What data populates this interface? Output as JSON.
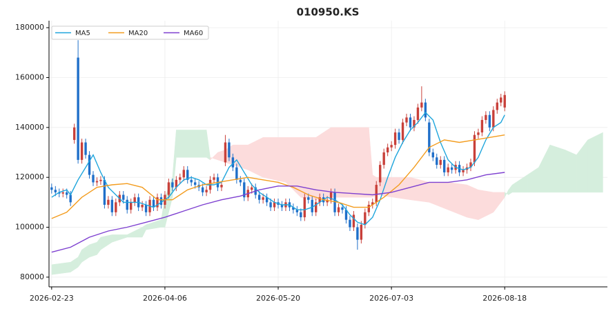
{
  "chart_data": {
    "type": "candlestick",
    "title": "010950.KS",
    "open": [
      116000,
      115000,
      114000,
      113500,
      114000,
      113000,
      135000,
      168000,
      127000,
      134000,
      129000,
      121000,
      118000,
      118500,
      119000,
      109000,
      111000,
      106000,
      110000,
      113000,
      111000,
      107000,
      110000,
      112000,
      108000,
      109000,
      106000,
      111000,
      108000,
      112000,
      109000,
      113000,
      118000,
      116000,
      119000,
      120000,
      123000,
      119000,
      118000,
      117000,
      116000,
      114000,
      115000,
      119000,
      120000,
      116000,
      126000,
      134000,
      128000,
      124000,
      119000,
      118000,
      112000,
      115000,
      116000,
      113000,
      111000,
      112000,
      110000,
      108000,
      110000,
      109000,
      108000,
      110000,
      108000,
      107000,
      106000,
      104000,
      112000,
      111000,
      106000,
      110000,
      112000,
      110000,
      111000,
      114000,
      106000,
      108000,
      107000,
      103000,
      100000,
      100000,
      95000,
      101000,
      106000,
      109000,
      110000,
      118000,
      125000,
      130000,
      132000,
      133000,
      138000,
      135000,
      142000,
      144000,
      140000,
      143000,
      148000,
      150000,
      142000,
      130000,
      128000,
      125000,
      127000,
      122000,
      124000,
      123000,
      125000,
      122000,
      123000,
      124000,
      126000,
      137000,
      138000,
      143000,
      145000,
      140000,
      147000,
      150000,
      148000
    ],
    "high": [
      117500,
      116500,
      115500,
      115500,
      115500,
      114500,
      141500,
      175000,
      135500,
      135500,
      130500,
      122500,
      120000,
      120500,
      120500,
      112500,
      112500,
      111500,
      114500,
      114500,
      112500,
      111500,
      113500,
      113500,
      110500,
      110500,
      112500,
      112500,
      113500,
      113500,
      114500,
      119500,
      119500,
      120500,
      121500,
      124500,
      124500,
      120500,
      119500,
      118500,
      117500,
      116500,
      120500,
      121500,
      121500,
      118500,
      137000,
      135500,
      129500,
      125500,
      120500,
      119500,
      116500,
      117500,
      117500,
      114500,
      113500,
      113500,
      111500,
      111500,
      111500,
      110500,
      111500,
      111500,
      109500,
      108500,
      107500,
      113500,
      113500,
      112500,
      111500,
      113500,
      113500,
      112500,
      115500,
      115500,
      109500,
      109500,
      108500,
      104500,
      106500,
      101500,
      102500,
      107500,
      110500,
      111500,
      118500,
      126500,
      131500,
      133500,
      134500,
      139500,
      139500,
      143500,
      145500,
      145500,
      144500,
      149500,
      156500,
      151500,
      143500,
      131500,
      129500,
      128500,
      128500,
      125500,
      125500,
      126500,
      126500,
      124500,
      125500,
      127500,
      138500,
      139500,
      144500,
      146500,
      146500,
      148500,
      151500,
      153500,
      154500
    ],
    "low": [
      113500,
      112500,
      112000,
      112000,
      111500,
      108500,
      133500,
      125500,
      125500,
      127500,
      119500,
      116500,
      116500,
      117000,
      107500,
      107500,
      104500,
      104500,
      108500,
      109500,
      105500,
      105500,
      108500,
      106500,
      106500,
      104500,
      104500,
      106500,
      106500,
      107500,
      107500,
      111500,
      114500,
      114500,
      117500,
      118500,
      117500,
      116500,
      115500,
      114500,
      112500,
      112500,
      113500,
      117500,
      114500,
      114500,
      124500,
      126500,
      122500,
      117500,
      116500,
      110500,
      110500,
      113500,
      111500,
      109500,
      109500,
      108500,
      106500,
      106500,
      107500,
      106500,
      106500,
      106500,
      105500,
      104500,
      102500,
      102500,
      109500,
      104500,
      104500,
      108500,
      108500,
      108500,
      109500,
      104500,
      104500,
      105500,
      101500,
      98500,
      98500,
      91000,
      93500,
      99500,
      104500,
      107500,
      108500,
      116500,
      123500,
      128500,
      130500,
      131500,
      133500,
      133500,
      140500,
      138500,
      138500,
      141500,
      146500,
      142500,
      128500,
      126500,
      123500,
      123500,
      120500,
      120500,
      121500,
      121500,
      120500,
      120500,
      121500,
      122500,
      124500,
      135500,
      136500,
      141500,
      138500,
      138500,
      145500,
      148500,
      146500
    ],
    "close": [
      115000,
      114000,
      113500,
      114000,
      113000,
      110000,
      140000,
      127000,
      134000,
      129000,
      121000,
      118000,
      118500,
      119000,
      109000,
      111000,
      106000,
      110000,
      113000,
      111000,
      107000,
      110000,
      112000,
      108000,
      109000,
      106000,
      111000,
      108000,
      112000,
      109000,
      113000,
      118000,
      116000,
      119000,
      120000,
      123000,
      119000,
      118000,
      117000,
      116000,
      114000,
      115000,
      119000,
      120000,
      116000,
      117000,
      134000,
      128000,
      124000,
      119000,
      118000,
      112000,
      115000,
      116000,
      113000,
      111000,
      112000,
      110000,
      108000,
      110000,
      109000,
      108000,
      110000,
      108000,
      107000,
      106000,
      104000,
      112000,
      111000,
      106000,
      110000,
      112000,
      110000,
      111000,
      114000,
      106000,
      108000,
      107000,
      103000,
      100000,
      105000,
      95000,
      101000,
      106000,
      109000,
      110000,
      117000,
      125000,
      130000,
      132000,
      133000,
      138000,
      135000,
      142000,
      144000,
      140000,
      143000,
      148000,
      150000,
      144000,
      130000,
      128000,
      125000,
      127000,
      122000,
      124000,
      123000,
      125000,
      122000,
      123000,
      124000,
      126000,
      137000,
      138000,
      143000,
      145000,
      140000,
      147000,
      150000,
      152000,
      153000
    ],
    "up_color": "#c8403a",
    "down_color": "#1f6fc9",
    "series": [
      {
        "name": "MA5",
        "color": "#1ea5dc",
        "x": [
          0,
          2,
          4,
          5,
          7,
          9,
          11,
          13,
          15,
          17,
          19,
          21,
          23,
          25,
          27,
          29,
          31,
          33,
          35,
          37,
          39,
          41,
          43,
          45,
          47,
          49,
          51,
          53,
          55,
          57,
          59,
          61,
          63,
          65,
          67,
          69,
          71,
          73,
          75,
          77,
          79,
          81,
          83,
          85,
          87,
          89,
          91,
          93,
          95,
          97,
          99,
          101,
          103,
          105,
          107,
          109,
          111,
          113,
          115,
          117,
          119,
          120
        ],
        "values": [
          112000,
          114000,
          115000,
          113000,
          119000,
          124000,
          129000,
          122000,
          116000,
          113000,
          110000,
          110000,
          110000,
          109000,
          108000,
          110000,
          112000,
          116000,
          119000,
          120000,
          119000,
          117000,
          117000,
          118000,
          124000,
          127000,
          122000,
          117000,
          114000,
          112000,
          110000,
          109000,
          109000,
          107000,
          107000,
          108000,
          110000,
          112000,
          111000,
          109000,
          105000,
          102000,
          101000,
          104000,
          111000,
          120000,
          128000,
          134000,
          139000,
          142000,
          146000,
          143000,
          134000,
          127000,
          124000,
          123000,
          124000,
          128000,
          135000,
          140000,
          142000,
          145000
        ]
      },
      {
        "name": "MA20",
        "color": "#f39c1e",
        "x": [
          0,
          4,
          8,
          12,
          16,
          20,
          24,
          28,
          32,
          36,
          40,
          44,
          48,
          52,
          56,
          60,
          64,
          68,
          72,
          76,
          80,
          84,
          88,
          92,
          96,
          100,
          104,
          108,
          112,
          116,
          120
        ],
        "values": [
          103500,
          106000,
          112000,
          116000,
          117000,
          117500,
          116000,
          111000,
          111000,
          115000,
          117000,
          118000,
          119000,
          120000,
          119000,
          118000,
          116000,
          113000,
          111000,
          110000,
          108000,
          108000,
          112000,
          117000,
          124000,
          132000,
          135000,
          134000,
          135000,
          136000,
          137000
        ]
      },
      {
        "name": "MA60",
        "color": "#7d3fd0",
        "x": [
          0,
          5,
          10,
          15,
          20,
          25,
          30,
          35,
          40,
          45,
          50,
          55,
          60,
          65,
          70,
          75,
          80,
          85,
          90,
          95,
          100,
          105,
          110,
          115,
          120
        ],
        "values": [
          90000,
          92000,
          96000,
          98500,
          100000,
          102000,
          104000,
          106500,
          109000,
          111000,
          112500,
          115000,
          116500,
          116500,
          115000,
          114000,
          113500,
          113000,
          114000,
          116000,
          118000,
          118000,
          119000,
          121000,
          122000
        ]
      }
    ],
    "cloud": {
      "x": [
        0,
        5,
        7,
        8,
        10,
        12,
        13,
        16,
        20,
        24,
        25,
        29,
        30,
        32,
        33,
        41,
        42,
        44,
        46,
        48,
        50,
        52,
        56,
        62,
        66,
        70,
        74,
        84,
        85,
        86,
        95,
        100,
        105,
        110,
        113,
        117,
        120,
        121,
        122,
        126,
        129,
        132,
        136,
        139,
        142,
        146
      ],
      "span_a": [
        85000,
        86000,
        88000,
        91000,
        93000,
        94000,
        96000,
        97000,
        97000,
        100000,
        101000,
        103000,
        112000,
        120000,
        139000,
        139000,
        128000,
        127000,
        126000,
        125000,
        124000,
        123000,
        120000,
        118000,
        112000,
        111000,
        112000,
        112000,
        112000,
        113000,
        111000,
        110000,
        107000,
        104000,
        103000,
        106000,
        112000,
        115000,
        117000,
        121000,
        124000,
        133000,
        131000,
        129000,
        135000,
        138000
      ],
      "span_b": [
        81000,
        82000,
        84000,
        86000,
        88000,
        89000,
        91000,
        94000,
        96000,
        96000,
        99000,
        100000,
        100000,
        112000,
        128000,
        128000,
        127000,
        130000,
        131000,
        133000,
        133000,
        133000,
        136000,
        136000,
        136000,
        136000,
        140000,
        140000,
        121000,
        120000,
        120000,
        118000,
        118000,
        117000,
        115000,
        114000,
        114000,
        113000,
        114000,
        114000,
        114000,
        114000,
        114000,
        114000,
        114000,
        114000
      ],
      "up_color": "#d5eedd",
      "down_color": "#fcdcdc"
    },
    "xlim": [
      -0.7,
      147.2
    ],
    "ylim": [
      76100,
      182800
    ],
    "xticks": [
      {
        "value": 0,
        "label": "2026-02-23"
      },
      {
        "value": 30,
        "label": "2026-04-06"
      },
      {
        "value": 60,
        "label": "2026-05-20"
      },
      {
        "value": 90,
        "label": "2026-07-03"
      },
      {
        "value": 120,
        "label": "2026-08-18"
      }
    ],
    "yticks": [
      80000,
      100000,
      120000,
      140000,
      160000,
      180000
    ],
    "grid": true,
    "legend": "upper left"
  }
}
